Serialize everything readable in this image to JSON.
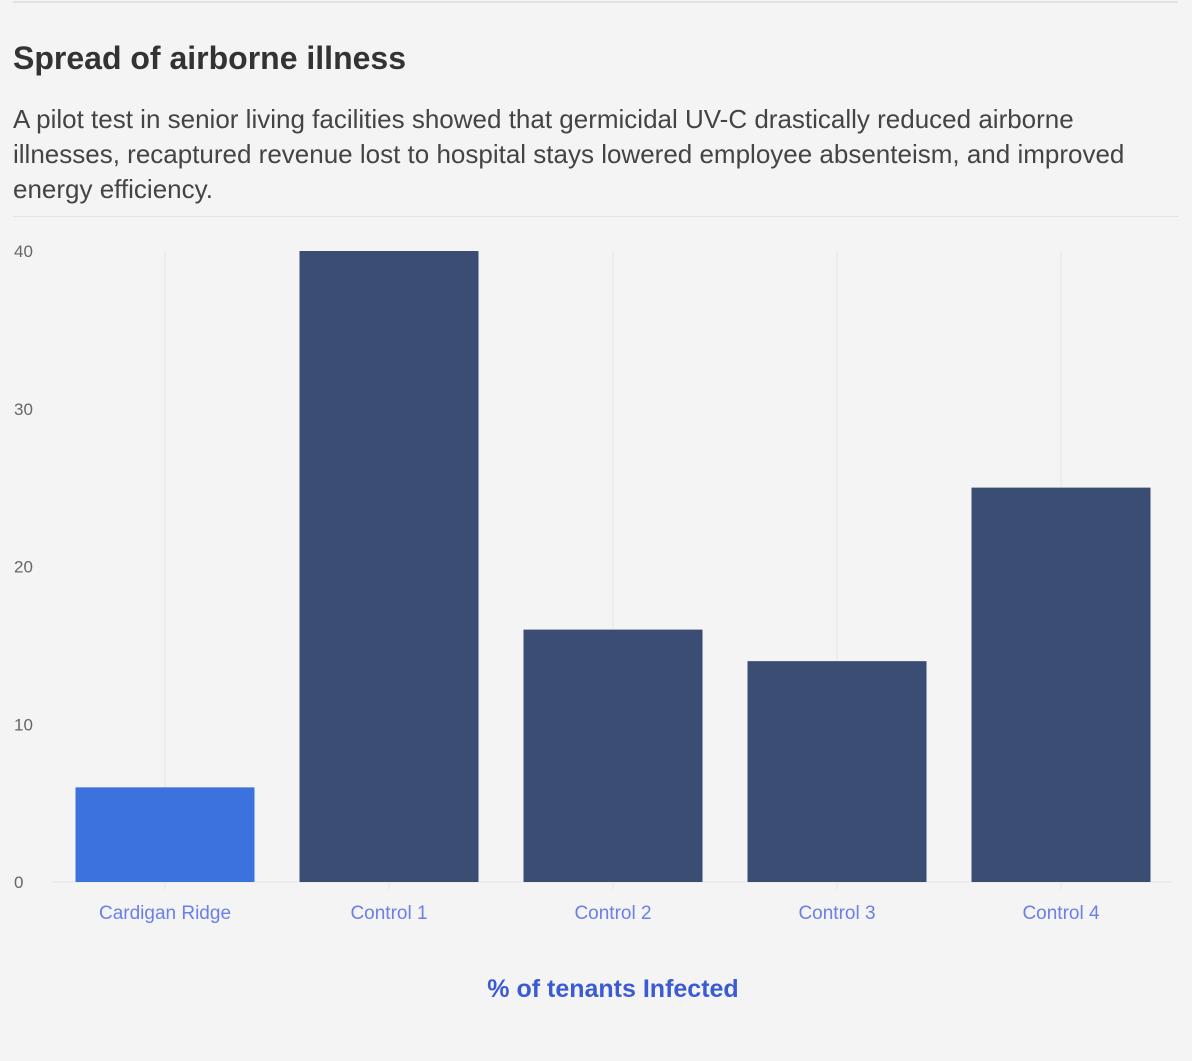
{
  "header": {
    "title": "Spread of airborne illness",
    "description": "A pilot test in senior living facilities showed that germicidal UV-C drastically reduced airborne illnesses, recaptured revenue lost to hospital stays lowered employee absenteism, and improved energy efficiency."
  },
  "chart_data": {
    "type": "bar",
    "title": "Spread of airborne illness",
    "categories": [
      "Cardigan Ridge",
      "Control 1",
      "Control 2",
      "Control 3",
      "Control 4"
    ],
    "values": [
      6,
      40,
      16,
      14,
      25
    ],
    "colors": [
      "#3c72dd",
      "#3b4d73",
      "#3b4d73",
      "#3b4d73",
      "#3b4d73"
    ],
    "xlabel": "% of tenants Infected",
    "ylabel": "",
    "ylim": [
      0,
      40
    ],
    "yticks": [
      0,
      10,
      20,
      30,
      40
    ],
    "grid": "vertical"
  }
}
